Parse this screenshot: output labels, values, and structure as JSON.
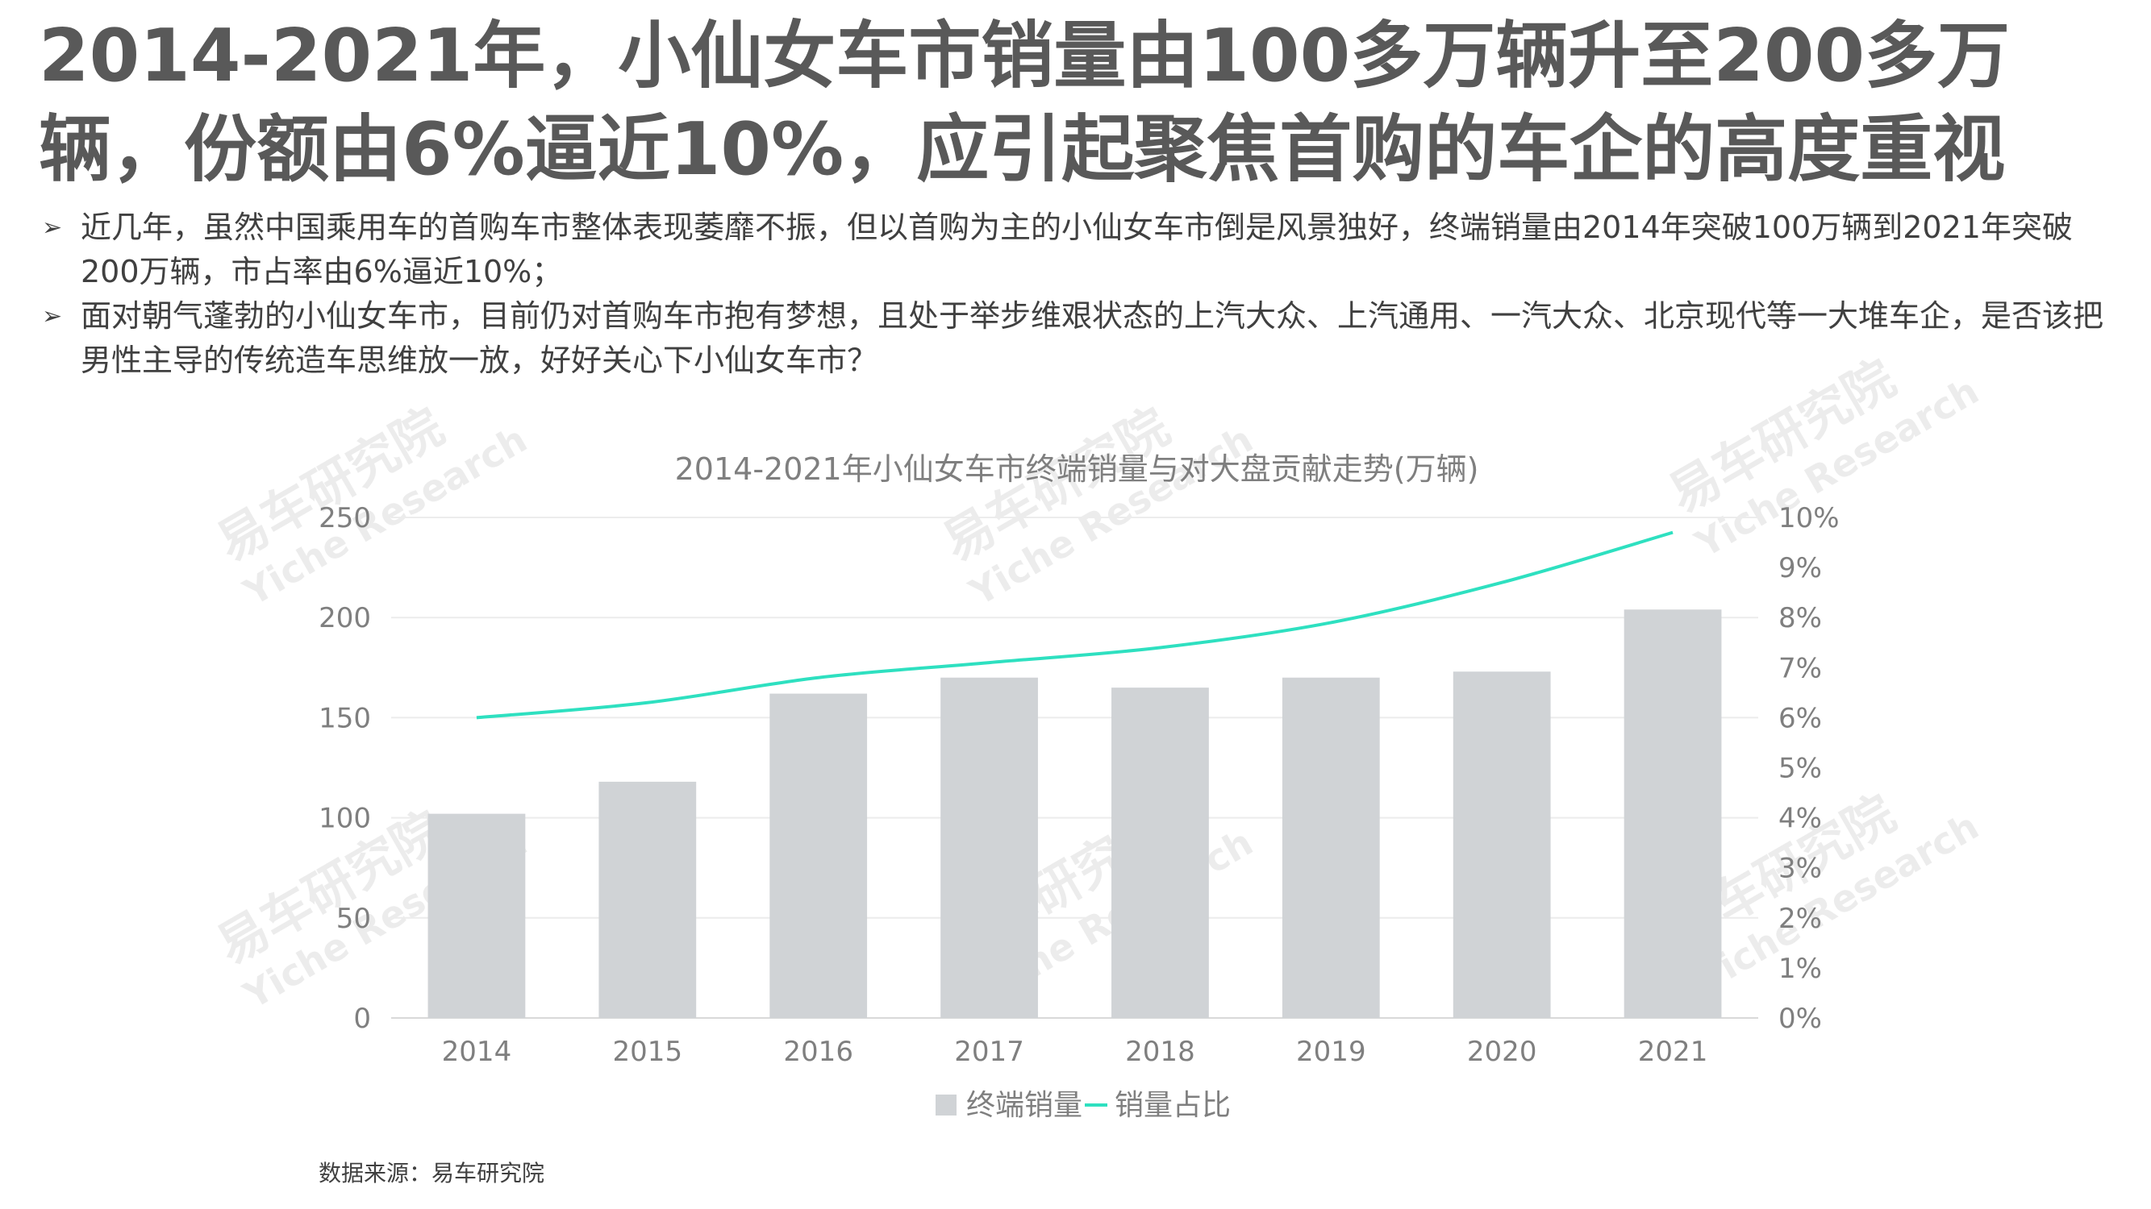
{
  "page": {
    "title": "2014-2021年，小仙女车市销量由100多万辆升至200多万辆，份额由6%逼近10%，应引起聚焦首购的车企的高度重视",
    "bullets": [
      "近几年，虽然中国乘用车的首购车市整体表现萎靡不振，但以首购为主的小仙女车市倒是风景独好，终端销量由2014年突破100万辆到2021年突破200万辆，市占率由6%逼近10%；",
      "面对朝气蓬勃的小仙女车市，目前仍对首购车市抱有梦想，且处于举步维艰状态的上汽大众、上汽通用、一汽大众、北京现代等一大堆车企，是否该把男性主导的传统造车思维放一放，好好关心下小仙女车市？"
    ],
    "bullet_icon": "arrow-bullet-icon",
    "source": "数据来源：易车研究院",
    "watermark": [
      "易车研究院",
      "Yiche Research"
    ]
  },
  "chart_data": {
    "type": "bar",
    "title": "2014-2021年小仙女车市终端销量与对大盘贡献走势(万辆)",
    "categories": [
      "2014",
      "2015",
      "2016",
      "2017",
      "2018",
      "2019",
      "2020",
      "2021"
    ],
    "series": [
      {
        "name": "终端销量",
        "type": "bar",
        "axis": "left",
        "values": [
          102,
          118,
          162,
          170,
          165,
          170,
          173,
          204
        ],
        "color": "#d0d3d6"
      },
      {
        "name": "销量占比",
        "type": "line",
        "axis": "right",
        "values": [
          6.0,
          6.3,
          6.8,
          7.1,
          7.4,
          7.9,
          8.7,
          9.7
        ],
        "color": "#2ee0c0"
      }
    ],
    "y_left": {
      "min": 0,
      "max": 250,
      "ticks": [
        "0",
        "50",
        "100",
        "150",
        "200",
        "250"
      ]
    },
    "y_right": {
      "min": 0,
      "max": 10,
      "ticks": [
        "0%",
        "1%",
        "2%",
        "3%",
        "4%",
        "5%",
        "6%",
        "7%",
        "8%",
        "9%",
        "10%"
      ]
    },
    "grid": true,
    "legend": "bottom-center"
  }
}
